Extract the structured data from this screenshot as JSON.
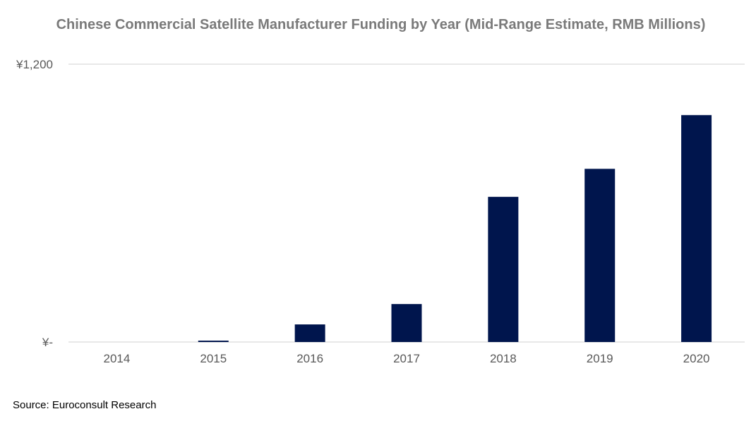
{
  "chart_data": {
    "type": "bar",
    "title": "Chinese Commercial Satellite Manufacturer Funding by Year (Mid-Range Estimate, RMB Millions)",
    "categories": [
      "2014",
      "2015",
      "2016",
      "2017",
      "2018",
      "2019",
      "2020"
    ],
    "values": [
      0,
      6,
      76,
      164,
      627,
      748,
      980
    ],
    "ylim": [
      0,
      1200
    ],
    "yticks": [
      {
        "value": 0,
        "label": "¥-"
      },
      {
        "value": 1200,
        "label": "¥1,200"
      }
    ],
    "xlabel": "",
    "ylabel": "",
    "grid": true,
    "bar_color": "#00154d",
    "grid_color": "#d9d9d9"
  },
  "source": "Source: Euroconsult Research"
}
